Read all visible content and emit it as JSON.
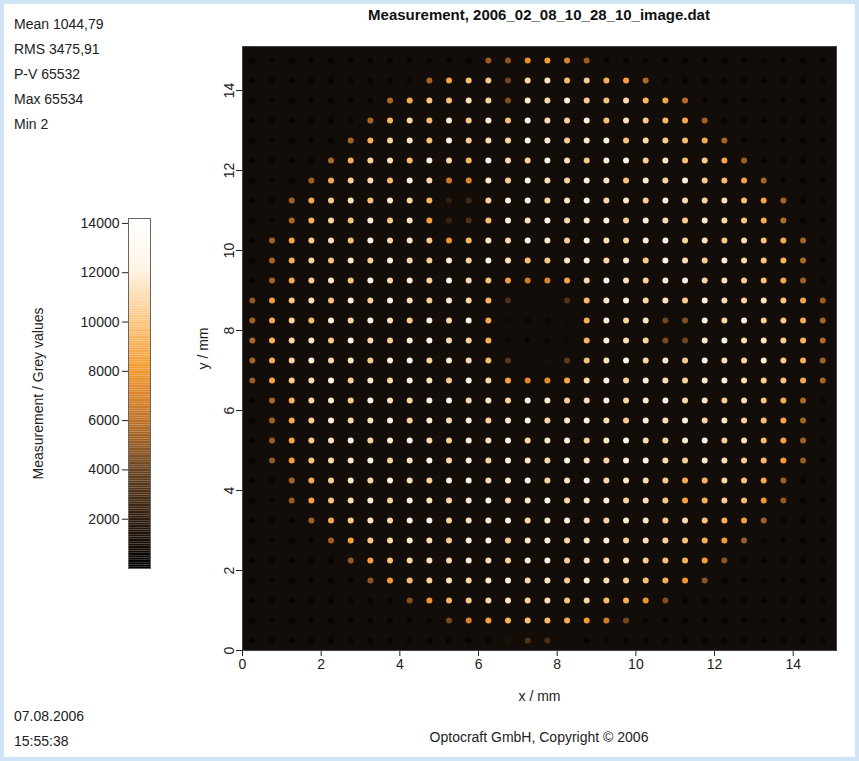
{
  "chart_data": {
    "type": "heatmap",
    "title": "Measurement, 2006_02_08_10_28_10_image.dat",
    "x_label": "x / mm",
    "y_label": "y / mm",
    "xlim": [
      0,
      15.1
    ],
    "ylim": [
      0,
      15.1
    ],
    "xticks": [
      0,
      2,
      4,
      6,
      8,
      10,
      12,
      14
    ],
    "yticks": [
      0,
      2,
      4,
      6,
      8,
      10,
      12,
      14
    ],
    "stats": [
      "Mean 1044,79",
      "RMS 3475,91",
      "P-V 65532",
      "Max 65534",
      "Min 2"
    ],
    "date": "07.08.2006",
    "time": "15:55:38",
    "footer": "Optocraft GmbH, Copyright © 2006",
    "colorbar": {
      "label": "Measurement / Grey values",
      "range": [
        0,
        14200
      ],
      "ticks": [
        2000,
        4000,
        6000,
        8000,
        10000,
        12000,
        14000
      ]
    },
    "cells": {
      "x": [
        0.25,
        0.75,
        1.25,
        1.75,
        2.25,
        2.75,
        3.25,
        3.75,
        4.25,
        4.75,
        5.25,
        5.75,
        6.25,
        6.75,
        7.25,
        7.75,
        8.25,
        8.75,
        9.25,
        9.75,
        10.25,
        10.75,
        11.25,
        11.75,
        12.25,
        12.75,
        13.25,
        13.75,
        14.25,
        14.75
      ],
      "y": [
        14.75,
        14.25,
        13.75,
        13.25,
        12.75,
        12.25,
        11.75,
        11.25,
        10.75,
        10.25,
        9.75,
        9.25,
        8.75,
        8.25,
        7.75,
        7.25,
        6.75,
        6.25,
        5.75,
        5.25,
        4.75,
        4.25,
        3.75,
        3.25,
        2.75,
        2.25,
        1.75,
        1.25,
        0.75,
        0.25
      ],
      "values": [
        [
          400,
          400,
          400,
          400,
          400,
          400,
          400,
          400,
          400,
          400,
          400,
          400,
          5200,
          4800,
          7600,
          8200,
          7000,
          5200,
          400,
          400,
          400,
          400,
          400,
          400,
          400,
          400,
          400,
          400,
          400,
          400
        ],
        [
          400,
          400,
          400,
          400,
          400,
          400,
          400,
          400,
          400,
          5400,
          8600,
          9800,
          10200,
          4200,
          10900,
          11400,
          9600,
          10300,
          9100,
          8400,
          5600,
          400,
          400,
          400,
          400,
          400,
          400,
          400,
          400,
          400
        ],
        [
          400,
          400,
          400,
          400,
          400,
          400,
          400,
          5600,
          8900,
          10100,
          9700,
          11300,
          10600,
          4600,
          11800,
          10900,
          12100,
          10400,
          9900,
          11000,
          9400,
          8700,
          5800,
          400,
          400,
          400,
          400,
          400,
          400,
          400
        ],
        [
          400,
          400,
          400,
          400,
          400,
          400,
          5500,
          9300,
          10800,
          9600,
          11700,
          10200,
          11900,
          9800,
          12400,
          11100,
          10500,
          12000,
          9700,
          11400,
          10100,
          9500,
          8800,
          5300,
          400,
          400,
          400,
          400,
          400,
          400
        ],
        [
          400,
          400,
          400,
          400,
          400,
          5400,
          9100,
          10600,
          11500,
          9800,
          12200,
          10400,
          11100,
          10700,
          12600,
          11800,
          10300,
          11600,
          12100,
          9900,
          11000,
          10200,
          9600,
          8900,
          5500,
          400,
          400,
          400,
          400,
          400
        ],
        [
          400,
          400,
          400,
          400,
          5600,
          9000,
          10500,
          11200,
          9700,
          11900,
          10800,
          9400,
          12300,
          11000,
          10600,
          12500,
          11300,
          10100,
          11800,
          12200,
          10400,
          11500,
          9800,
          10300,
          8700,
          5300,
          400,
          400,
          400,
          400
        ],
        [
          400,
          400,
          400,
          5200,
          8800,
          10400,
          11000,
          9600,
          12000,
          10900,
          6500,
          7200,
          11700,
          10300,
          12400,
          11200,
          10600,
          12100,
          11400,
          9900,
          11800,
          10700,
          12000,
          10200,
          9500,
          8600,
          5400,
          400,
          400,
          400
        ],
        [
          400,
          400,
          5300,
          8700,
          10100,
          11300,
          9800,
          11600,
          10700,
          9200,
          2200,
          2600,
          10500,
          11900,
          12200,
          10800,
          11500,
          12300,
          10900,
          11700,
          10400,
          12100,
          11000,
          10600,
          11200,
          9700,
          8500,
          5400,
          400,
          400
        ],
        [
          400,
          400,
          5600,
          9200,
          10600,
          9900,
          11800,
          10300,
          11400,
          8400,
          2400,
          3100,
          9600,
          12000,
          11300,
          12500,
          10900,
          11600,
          12200,
          10500,
          11900,
          11100,
          10200,
          11700,
          10800,
          9900,
          8900,
          5700,
          400,
          400
        ],
        [
          400,
          5300,
          8600,
          10300,
          11100,
          9700,
          12000,
          10800,
          11500,
          10200,
          7800,
          9400,
          11600,
          10900,
          12300,
          11700,
          10400,
          12100,
          11200,
          10700,
          11900,
          12400,
          10600,
          11300,
          10100,
          11000,
          9800,
          8800,
          5500,
          400
        ],
        [
          400,
          5500,
          9000,
          10700,
          9900,
          11600,
          10500,
          12200,
          11000,
          10300,
          11800,
          10600,
          12400,
          11300,
          9700,
          10100,
          11500,
          12000,
          10800,
          11600,
          10200,
          12300,
          11100,
          10400,
          11800,
          10700,
          9900,
          9100,
          5600,
          400
        ],
        [
          400,
          5400,
          8800,
          10400,
          11400,
          10000,
          12100,
          10900,
          11700,
          10600,
          12200,
          11000,
          9800,
          8200,
          6600,
          7000,
          8600,
          10900,
          12400,
          11300,
          10500,
          11800,
          12000,
          10700,
          11200,
          10300,
          9700,
          8700,
          5300,
          400
        ],
        [
          5000,
          8300,
          10100,
          11200,
          9800,
          11900,
          10600,
          12300,
          11100,
          10400,
          11700,
          10800,
          9300,
          3000,
          900,
          800,
          3200,
          9500,
          11600,
          12200,
          10900,
          11400,
          10200,
          12000,
          11000,
          10500,
          11300,
          9900,
          8600,
          5200
        ],
        [
          5300,
          8700,
          10500,
          9600,
          11800,
          10700,
          12100,
          11200,
          10300,
          11900,
          10800,
          12300,
          8800,
          700,
          500,
          500,
          700,
          9000,
          11800,
          10600,
          11400,
          4200,
          4600,
          11900,
          10800,
          12100,
          10400,
          10000,
          8900,
          5500
        ],
        [
          5600,
          9100,
          10900,
          11500,
          10100,
          12200,
          11000,
          10400,
          11800,
          12400,
          11100,
          10600,
          9100,
          600,
          450,
          450,
          650,
          9300,
          12000,
          11200,
          10700,
          4400,
          4100,
          11600,
          12200,
          10900,
          11400,
          10300,
          9200,
          5700
        ],
        [
          5400,
          8900,
          10600,
          12000,
          10800,
          11400,
          10200,
          11900,
          12300,
          10700,
          11600,
          11000,
          9600,
          3400,
          1000,
          1100,
          3600,
          9800,
          11300,
          12400,
          10800,
          11700,
          10300,
          12100,
          11100,
          10600,
          11800,
          10100,
          9000,
          5300
        ],
        [
          5100,
          8500,
          10200,
          11100,
          12200,
          10500,
          11700,
          10900,
          12000,
          11300,
          10400,
          12200,
          10800,
          8400,
          7200,
          7500,
          8700,
          11000,
          12300,
          10600,
          11900,
          11200,
          10500,
          11600,
          12000,
          10900,
          10200,
          9800,
          8800,
          5400
        ],
        [
          400,
          5500,
          9200,
          10800,
          11600,
          10300,
          12100,
          11200,
          10700,
          11900,
          12400,
          10900,
          11500,
          10600,
          12200,
          11800,
          10400,
          11100,
          12000,
          10800,
          11700,
          12300,
          10900,
          11400,
          10200,
          11000,
          9900,
          8900,
          5600,
          400
        ],
        [
          400,
          5300,
          8800,
          10400,
          11900,
          10900,
          11400,
          12300,
          10600,
          11800,
          11100,
          12000,
          10500,
          11700,
          12400,
          10800,
          11600,
          12200,
          11000,
          10300,
          11900,
          11300,
          12100,
          10700,
          11500,
          10400,
          9700,
          8600,
          5400,
          400
        ],
        [
          400,
          5200,
          8600,
          10100,
          11300,
          12000,
          10700,
          11800,
          12200,
          11000,
          10400,
          11900,
          11300,
          12300,
          10900,
          11600,
          12000,
          10600,
          11500,
          12400,
          11100,
          10800,
          11700,
          12100,
          10300,
          11200,
          9600,
          8500,
          5300,
          400
        ],
        [
          400,
          5000,
          8300,
          9900,
          10800,
          11600,
          12100,
          10500,
          11400,
          12300,
          11000,
          11800,
          10600,
          12000,
          11500,
          10900,
          12200,
          11300,
          10700,
          11900,
          12300,
          11000,
          10400,
          11600,
          11100,
          10200,
          9400,
          8200,
          5100,
          400
        ],
        [
          400,
          400,
          5400,
          8900,
          10300,
          11500,
          10800,
          12000,
          11200,
          10600,
          11900,
          12300,
          11000,
          11700,
          12100,
          10700,
          11400,
          12200,
          10900,
          11600,
          11100,
          10300,
          8900,
          9300,
          10800,
          9900,
          8700,
          5300,
          400,
          400
        ],
        [
          400,
          400,
          5100,
          8400,
          9800,
          11100,
          11800,
          10500,
          12000,
          11300,
          10900,
          11700,
          12200,
          11000,
          11600,
          12300,
          10800,
          11500,
          11900,
          10600,
          11200,
          10100,
          8500,
          9100,
          10400,
          9500,
          8100,
          5000,
          400,
          400
        ],
        [
          400,
          400,
          400,
          5300,
          8800,
          10200,
          11400,
          10700,
          11900,
          12100,
          10500,
          11300,
          11800,
          12200,
          10900,
          11600,
          12000,
          11100,
          10600,
          11800,
          11400,
          10300,
          11000,
          9900,
          9100,
          8300,
          5200,
          400,
          400,
          400
        ],
        [
          400,
          400,
          400,
          400,
          5200,
          8600,
          10100,
          10900,
          11700,
          11100,
          10400,
          11900,
          12300,
          10200,
          11500,
          12000,
          10800,
          11400,
          11900,
          10600,
          11200,
          10500,
          9800,
          9000,
          8100,
          5100,
          400,
          400,
          400,
          400
        ],
        [
          400,
          400,
          400,
          400,
          400,
          5000,
          8400,
          9700,
          10800,
          11400,
          10900,
          12000,
          11200,
          10600,
          11800,
          12100,
          10400,
          11300,
          10700,
          11500,
          10200,
          9900,
          9200,
          8300,
          4900,
          400,
          400,
          400,
          400,
          400
        ],
        [
          400,
          400,
          400,
          400,
          400,
          400,
          4900,
          8200,
          9600,
          10500,
          11300,
          10800,
          11700,
          12100,
          10900,
          11500,
          10300,
          11800,
          11000,
          10400,
          9700,
          9100,
          8000,
          4800,
          400,
          400,
          400,
          400,
          400,
          400
        ],
        [
          400,
          400,
          400,
          400,
          400,
          400,
          400,
          400,
          4700,
          7900,
          9300,
          10200,
          10900,
          11400,
          10600,
          11200,
          10000,
          10700,
          9600,
          9000,
          7800,
          4600,
          400,
          400,
          400,
          400,
          400,
          400,
          400,
          400
        ],
        [
          400,
          400,
          400,
          400,
          400,
          400,
          400,
          400,
          400,
          400,
          4400,
          6900,
          8400,
          9200,
          9800,
          9500,
          8900,
          8100,
          6700,
          4300,
          400,
          400,
          400,
          400,
          400,
          400,
          400,
          400,
          400,
          400
        ],
        [
          400,
          400,
          400,
          400,
          400,
          400,
          400,
          400,
          400,
          400,
          400,
          400,
          400,
          1200,
          3200,
          3000,
          1100,
          400,
          400,
          400,
          400,
          400,
          400,
          400,
          400,
          400,
          400,
          400,
          400,
          400
        ]
      ]
    }
  }
}
